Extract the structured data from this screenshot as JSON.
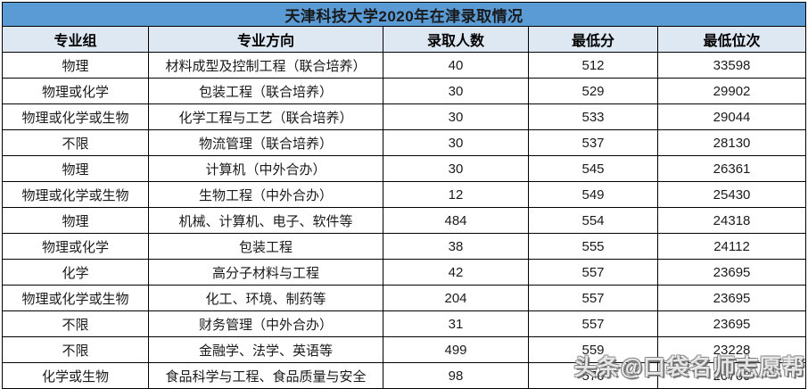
{
  "title": "天津科技大学2020年在津录取情况",
  "watermark_text": "头条@口袋名师志愿帮",
  "colors": {
    "title_bar_bg": "#5B9BD5",
    "header_row_bg": "#DEE8F3",
    "row_bg": "#FFFFFF",
    "border": "#000000",
    "text": "#000000"
  },
  "table": {
    "column_keys": [
      "group",
      "major",
      "count",
      "min-score",
      "min-rank"
    ],
    "headers": [
      "专业组",
      "专业方向",
      "录取人数",
      "最低分",
      "最低位次"
    ],
    "rows": [
      [
        "物理",
        "材料成型及控制工程（联合培养）",
        "40",
        "512",
        "33598"
      ],
      [
        "物理或化学",
        "包装工程（联合培养）",
        "30",
        "529",
        "29902"
      ],
      [
        "物理或化学或生物",
        "化学工程与工艺（联合培养）",
        "30",
        "533",
        "29044"
      ],
      [
        "不限",
        "物流管理（联合培养）",
        "30",
        "537",
        "28130"
      ],
      [
        "物理",
        "计算机（中外合办）",
        "30",
        "545",
        "26361"
      ],
      [
        "物理或化学或生物",
        "生物工程（中外合办）",
        "12",
        "549",
        "25430"
      ],
      [
        "物理",
        "机械、计算机、电子、软件等",
        "484",
        "554",
        "24318"
      ],
      [
        "物理或化学",
        "包装工程",
        "38",
        "555",
        "24112"
      ],
      [
        "化学",
        "高分子材料与工程",
        "42",
        "557",
        "23695"
      ],
      [
        "物理或化学或生物",
        "化工、环境、制药等",
        "204",
        "557",
        "23695"
      ],
      [
        "不限",
        "财务管理（中外合办）",
        "31",
        "557",
        "23695"
      ],
      [
        "不限",
        "金融学、法学、英语等",
        "499",
        "559",
        "23228"
      ],
      [
        "化学或生物",
        "食品科学与工程、食品质量与安全",
        "98",
        "576",
        "20760"
      ]
    ]
  },
  "chart_data": {
    "type": "table",
    "title": "天津科技大学2020年在津录取情况",
    "columns": [
      "专业组",
      "专业方向",
      "录取人数",
      "最低分",
      "最低位次"
    ],
    "rows": [
      [
        "物理",
        "材料成型及控制工程（联合培养）",
        40,
        512,
        33598
      ],
      [
        "物理或化学",
        "包装工程（联合培养）",
        30,
        529,
        29902
      ],
      [
        "物理或化学或生物",
        "化学工程与工艺（联合培养）",
        30,
        533,
        29044
      ],
      [
        "不限",
        "物流管理（联合培养）",
        30,
        537,
        28130
      ],
      [
        "物理",
        "计算机（中外合办）",
        30,
        545,
        26361
      ],
      [
        "物理或化学或生物",
        "生物工程（中外合办）",
        12,
        549,
        25430
      ],
      [
        "物理",
        "机械、计算机、电子、软件等",
        484,
        554,
        24318
      ],
      [
        "物理或化学",
        "包装工程",
        38,
        555,
        24112
      ],
      [
        "化学",
        "高分子材料与工程",
        42,
        557,
        23695
      ],
      [
        "物理或化学或生物",
        "化工、环境、制药等",
        204,
        557,
        23695
      ],
      [
        "不限",
        "财务管理（中外合办）",
        31,
        557,
        23695
      ],
      [
        "不限",
        "金融学、法学、英语等",
        499,
        559,
        23228
      ],
      [
        "化学或生物",
        "食品科学与工程、食品质量与安全",
        98,
        576,
        20760
      ]
    ]
  }
}
